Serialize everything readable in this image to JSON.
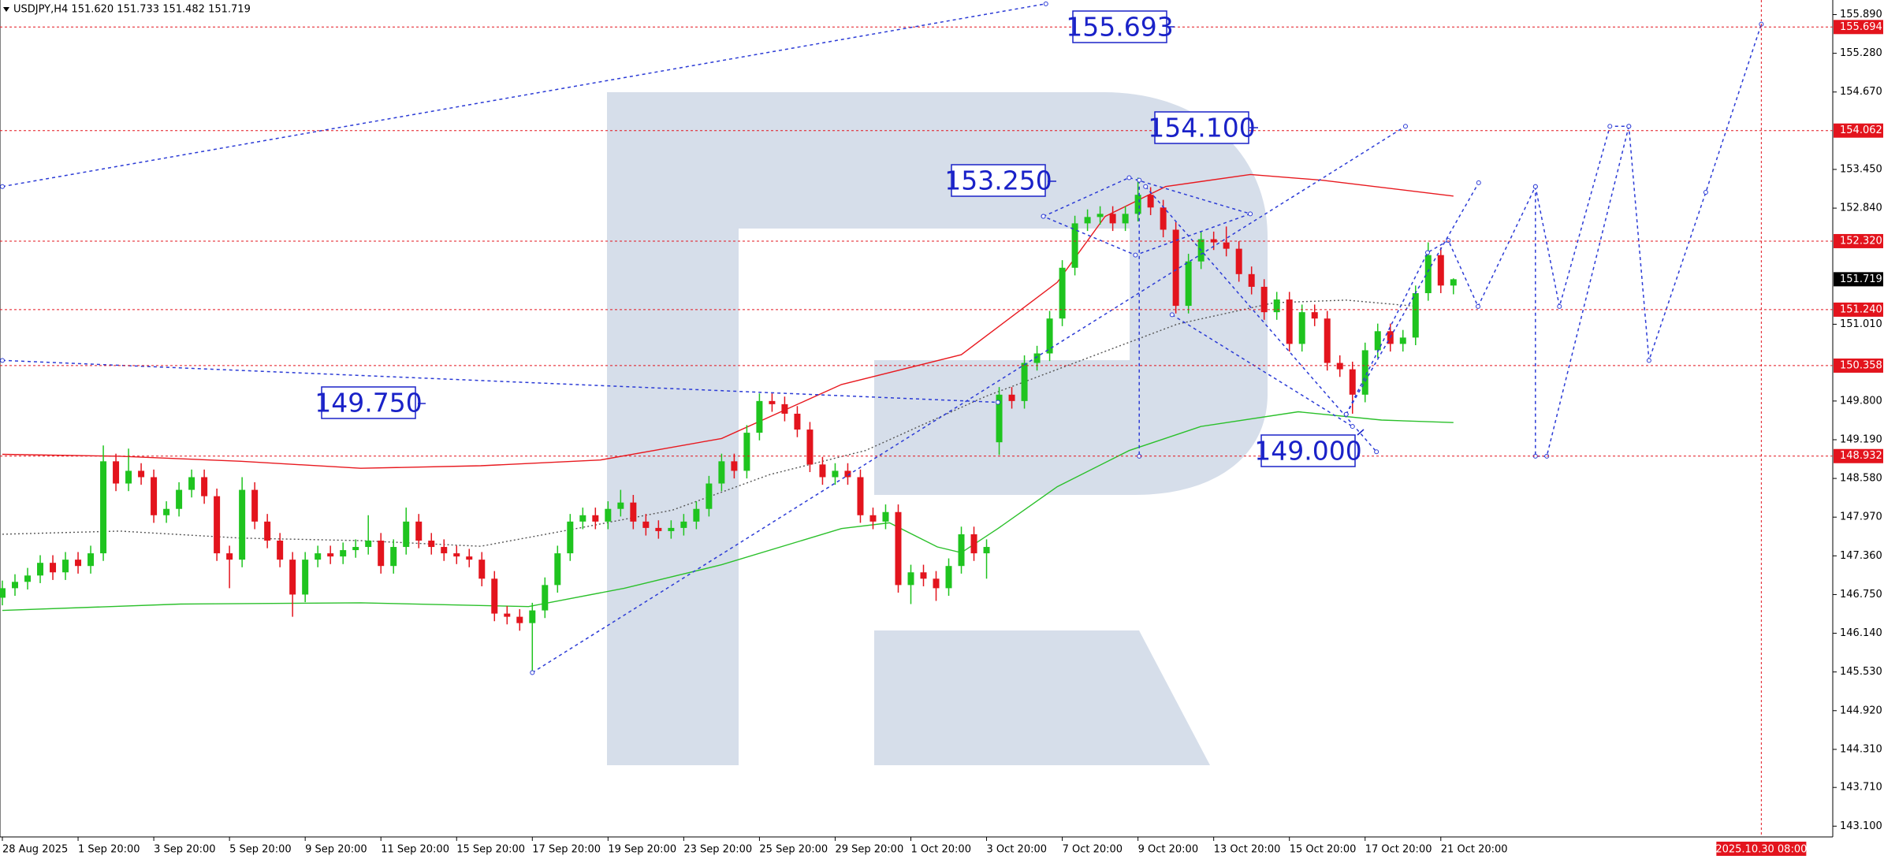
{
  "chart_data": {
    "type": "candlestick",
    "title": "USDJPY,H4  151.620 151.733 151.482 151.719",
    "up_color": "#1fc41f",
    "down_color": "#e3141d",
    "xlim": [
      0,
      145
    ],
    "ylim": [
      142.93,
      156.12
    ],
    "ohlc": [
      [
        146.7,
        146.97,
        146.58,
        146.85
      ],
      [
        146.85,
        147.07,
        146.73,
        146.95
      ],
      [
        146.95,
        147.17,
        146.83,
        147.05
      ],
      [
        147.05,
        147.37,
        146.93,
        147.25
      ],
      [
        147.25,
        147.37,
        146.98,
        147.1
      ],
      [
        147.1,
        147.42,
        146.98,
        147.3
      ],
      [
        147.3,
        147.42,
        147.08,
        147.2
      ],
      [
        147.2,
        147.52,
        147.08,
        147.4
      ],
      [
        147.4,
        149.1,
        147.28,
        148.85
      ],
      [
        148.85,
        148.97,
        148.38,
        148.5
      ],
      [
        148.5,
        149.05,
        148.38,
        148.7
      ],
      [
        148.7,
        148.82,
        148.48,
        148.6
      ],
      [
        148.6,
        148.72,
        147.88,
        148.0
      ],
      [
        148.0,
        148.22,
        147.88,
        148.1
      ],
      [
        148.1,
        148.52,
        147.98,
        148.4
      ],
      [
        148.4,
        148.72,
        148.28,
        148.6
      ],
      [
        148.6,
        148.72,
        148.18,
        148.3
      ],
      [
        148.3,
        148.42,
        147.28,
        147.4
      ],
      [
        147.4,
        147.52,
        146.85,
        147.3
      ],
      [
        147.3,
        148.6,
        147.18,
        148.4
      ],
      [
        148.4,
        148.52,
        147.78,
        147.9
      ],
      [
        147.9,
        148.02,
        147.48,
        147.6
      ],
      [
        147.6,
        147.72,
        147.18,
        147.3
      ],
      [
        147.3,
        147.42,
        146.4,
        146.75
      ],
      [
        146.75,
        147.42,
        146.63,
        147.3
      ],
      [
        147.3,
        147.52,
        147.18,
        147.4
      ],
      [
        147.4,
        147.52,
        147.23,
        147.35
      ],
      [
        147.35,
        147.57,
        147.23,
        147.45
      ],
      [
        147.45,
        147.62,
        147.33,
        147.5
      ],
      [
        147.5,
        148.0,
        147.38,
        147.6
      ],
      [
        147.6,
        147.72,
        147.08,
        147.2
      ],
      [
        147.2,
        147.62,
        147.08,
        147.5
      ],
      [
        147.5,
        148.12,
        147.38,
        147.9
      ],
      [
        147.9,
        148.02,
        147.48,
        147.6
      ],
      [
        147.6,
        147.72,
        147.38,
        147.5
      ],
      [
        147.5,
        147.62,
        147.28,
        147.4
      ],
      [
        147.4,
        147.52,
        147.23,
        147.35
      ],
      [
        147.35,
        147.47,
        147.18,
        147.3
      ],
      [
        147.3,
        147.42,
        146.88,
        147.0
      ],
      [
        147.0,
        147.12,
        146.33,
        146.45
      ],
      [
        146.45,
        146.57,
        146.28,
        146.4
      ],
      [
        146.4,
        146.52,
        146.18,
        146.3
      ],
      [
        146.3,
        146.62,
        145.52,
        146.5
      ],
      [
        146.5,
        147.02,
        146.38,
        146.9
      ],
      [
        146.9,
        147.52,
        146.78,
        147.4
      ],
      [
        147.4,
        148.02,
        147.28,
        147.9
      ],
      [
        147.9,
        148.12,
        147.78,
        148.0
      ],
      [
        148.0,
        148.12,
        147.78,
        147.9
      ],
      [
        147.9,
        148.22,
        147.78,
        148.1
      ],
      [
        148.1,
        148.4,
        147.98,
        148.2
      ],
      [
        148.2,
        148.32,
        147.78,
        147.9
      ],
      [
        147.9,
        148.02,
        147.68,
        147.8
      ],
      [
        147.8,
        147.92,
        147.63,
        147.75
      ],
      [
        147.75,
        147.92,
        147.63,
        147.8
      ],
      [
        147.8,
        148.02,
        147.68,
        147.9
      ],
      [
        147.9,
        148.22,
        147.78,
        148.1
      ],
      [
        148.1,
        148.62,
        147.98,
        148.5
      ],
      [
        148.5,
        148.97,
        148.38,
        148.85
      ],
      [
        148.85,
        148.97,
        148.58,
        148.7
      ],
      [
        148.7,
        149.42,
        148.58,
        149.3
      ],
      [
        149.3,
        149.92,
        149.18,
        149.8
      ],
      [
        149.8,
        149.92,
        149.63,
        149.75
      ],
      [
        149.75,
        149.87,
        149.48,
        149.6
      ],
      [
        149.6,
        149.72,
        149.23,
        149.35
      ],
      [
        149.35,
        149.47,
        148.68,
        148.8
      ],
      [
        148.8,
        148.92,
        148.48,
        148.6
      ],
      [
        148.6,
        148.82,
        148.48,
        148.7
      ],
      [
        148.7,
        148.82,
        148.48,
        148.6
      ],
      [
        148.6,
        148.72,
        147.88,
        148.0
      ],
      [
        148.0,
        148.12,
        147.78,
        147.9
      ],
      [
        147.9,
        148.17,
        147.78,
        148.05
      ],
      [
        148.05,
        148.17,
        146.78,
        146.9
      ],
      [
        146.9,
        147.22,
        146.6,
        147.1
      ],
      [
        147.1,
        147.22,
        146.88,
        147.0
      ],
      [
        147.0,
        147.12,
        146.65,
        146.85
      ],
      [
        146.85,
        147.32,
        146.73,
        147.2
      ],
      [
        147.2,
        147.82,
        147.08,
        147.7
      ],
      [
        147.7,
        147.82,
        147.28,
        147.4
      ],
      [
        147.4,
        147.62,
        147.0,
        147.5
      ],
      [
        149.15,
        150.02,
        148.95,
        149.9
      ],
      [
        149.9,
        150.02,
        149.68,
        149.8
      ],
      [
        149.8,
        150.52,
        149.68,
        150.4
      ],
      [
        150.4,
        150.67,
        150.28,
        150.55
      ],
      [
        150.55,
        151.22,
        150.43,
        151.1
      ],
      [
        151.1,
        152.02,
        150.98,
        151.9
      ],
      [
        151.9,
        152.72,
        151.78,
        152.6
      ],
      [
        152.6,
        152.82,
        152.48,
        152.7
      ],
      [
        152.7,
        152.87,
        152.58,
        152.75
      ],
      [
        152.75,
        152.87,
        152.48,
        152.6
      ],
      [
        152.6,
        152.87,
        152.48,
        152.75
      ],
      [
        152.75,
        153.32,
        152.63,
        153.05
      ],
      [
        153.05,
        153.17,
        152.73,
        152.85
      ],
      [
        152.85,
        152.97,
        152.38,
        152.5
      ],
      [
        152.5,
        152.62,
        151.18,
        151.3
      ],
      [
        151.3,
        152.12,
        151.18,
        152.0
      ],
      [
        152.0,
        152.47,
        151.88,
        152.35
      ],
      [
        152.35,
        152.47,
        152.18,
        152.3
      ],
      [
        152.3,
        152.55,
        152.08,
        152.2
      ],
      [
        152.2,
        152.32,
        151.68,
        151.8
      ],
      [
        151.8,
        151.92,
        151.48,
        151.6
      ],
      [
        151.6,
        151.72,
        151.08,
        151.2
      ],
      [
        151.2,
        151.52,
        151.08,
        151.4
      ],
      [
        151.4,
        151.52,
        150.58,
        150.7
      ],
      [
        150.7,
        151.32,
        150.58,
        151.2
      ],
      [
        151.2,
        151.32,
        150.98,
        151.1
      ],
      [
        151.1,
        151.22,
        150.28,
        150.4
      ],
      [
        150.4,
        150.52,
        150.18,
        150.3
      ],
      [
        150.3,
        150.42,
        149.6,
        149.9
      ],
      [
        149.9,
        150.72,
        149.78,
        150.6
      ],
      [
        150.6,
        151.02,
        150.48,
        150.9
      ],
      [
        150.9,
        151.02,
        150.58,
        150.7
      ],
      [
        150.7,
        150.92,
        150.58,
        150.8
      ],
      [
        150.8,
        151.62,
        150.68,
        151.5
      ],
      [
        151.5,
        152.3,
        151.38,
        152.1
      ],
      [
        152.1,
        152.22,
        151.5,
        151.62
      ],
      [
        151.62,
        151.733,
        151.482,
        151.719
      ]
    ],
    "moving_averages": [
      {
        "color": "#e8191f",
        "style": "solid",
        "x": [
          0,
          9.3,
          18.9,
          28.4,
          37.9,
          47.4,
          57,
          66.5,
          76,
          83.6,
          87.4,
          92.2,
          98.9,
          104.6,
          115
        ],
        "values": [
          148.96,
          148.93,
          148.85,
          148.74,
          148.78,
          148.87,
          149.21,
          150.06,
          150.53,
          151.67,
          152.71,
          153.18,
          153.37,
          153.28,
          153.03
        ]
      },
      {
        "color": "#2bc02b",
        "style": "solid",
        "x": [
          0,
          14.1,
          28.4,
          41.7,
          49.3,
          57,
          66.5,
          70.3,
          74.1,
          76,
          78.9,
          83.6,
          89.3,
          95,
          102.7,
          109.3,
          115
        ],
        "values": [
          146.5,
          146.6,
          146.62,
          146.56,
          146.85,
          147.22,
          147.79,
          147.88,
          147.5,
          147.41,
          147.79,
          148.45,
          149.02,
          149.4,
          149.63,
          149.5,
          149.46
        ]
      },
      {
        "color": "#555555",
        "style": "dotted",
        "x": [
          0,
          9.3,
          18.9,
          28.4,
          37.9,
          45.5,
          53.1,
          60.8,
          68.4,
          77.9,
          85.5,
          93.1,
          100.8,
          106.5,
          112.2
        ],
        "values": [
          147.7,
          147.75,
          147.64,
          147.6,
          147.51,
          147.79,
          148.08,
          148.64,
          149.02,
          149.87,
          150.44,
          151.01,
          151.35,
          151.39,
          151.29
        ]
      }
    ],
    "drawings_color": "#2b3bd6",
    "drawings": [
      {
        "x": [
          0,
          82.7
        ],
        "values": [
          153.18,
          156.06
        ]
      },
      {
        "x": [
          0,
          78.9
        ],
        "values": [
          150.44,
          149.78
        ]
      },
      {
        "x": [
          42,
          111.2
        ],
        "values": [
          145.52,
          154.13
        ]
      },
      {
        "x": [
          82.5,
          89.3,
          98.9,
          89.8,
          82.5
        ],
        "values": [
          152.71,
          153.32,
          152.75,
          152.1,
          152.71
        ]
      },
      {
        "x": [
          90.6,
          108.9
        ],
        "values": [
          153.18,
          149.0
        ]
      },
      {
        "x": [
          92.7,
          107
        ],
        "values": [
          151.16,
          149.4
        ]
      },
      {
        "x": [
          90.1,
          90.1
        ],
        "values": [
          153.28,
          148.93
        ]
      },
      {
        "x": [
          106.5,
          112.95,
          114.6,
          116.95,
          121.5,
          123.4,
          127.4,
          128.9,
          130.5,
          135.0,
          139.4
        ],
        "values": [
          149.59,
          152.14,
          152.33,
          151.29,
          153.18,
          151.29,
          154.13,
          154.13,
          150.44,
          153.09,
          155.74
        ]
      },
      {
        "x": [
          121.5,
          121.5,
          122.4,
          128.9
        ],
        "values": [
          153.18,
          148.93,
          148.93,
          154.13
        ]
      },
      {
        "x": [
          106.5,
          117
        ],
        "values": [
          149.59,
          153.24
        ]
      }
    ],
    "annotations": [
      "155.693",
      "154.100",
      "153.250",
      "149.750",
      "149.000"
    ],
    "levels": [
      155.694,
      154.062,
      {
        "value": 152.32,
        "label": "152.320"
      },
      {
        "value": 151.24,
        "label": "151.240"
      },
      150.358,
      148.932
    ],
    "current_price": 151.719,
    "time_marker": {
      "value": 139.4,
      "label": "2025.10.30 08:00"
    },
    "yticks": [
      {
        "value": 155.89,
        "label": "155.890"
      },
      {
        "value": 155.28,
        "label": "155.280"
      },
      {
        "value": 154.67,
        "label": "154.670"
      },
      {
        "value": 153.45,
        "label": "153.450"
      },
      {
        "value": 152.84,
        "label": "152.840"
      },
      {
        "value": 151.01,
        "label": "151.010"
      },
      {
        "value": 149.8,
        "label": "149.800"
      },
      {
        "value": 149.19,
        "label": "149.190"
      },
      {
        "value": 148.58,
        "label": "148.580"
      },
      {
        "value": 147.97,
        "label": "147.970"
      },
      {
        "value": 147.36,
        "label": "147.360"
      },
      {
        "value": 146.75,
        "label": "146.750"
      },
      {
        "value": 146.14,
        "label": "146.140"
      },
      {
        "value": 145.53,
        "label": "145.530"
      },
      {
        "value": 144.92,
        "label": "144.920"
      },
      {
        "value": 144.31,
        "label": "144.310"
      },
      {
        "value": 143.71,
        "label": "143.710"
      },
      {
        "value": 143.1,
        "label": "143.100"
      }
    ],
    "xticks": [
      {
        "value": 0,
        "label": "28 Aug 2025"
      },
      {
        "value": 6,
        "label": "1 Sep 20:00"
      },
      {
        "value": 12,
        "label": "3 Sep 20:00"
      },
      {
        "value": 18,
        "label": "5 Sep 20:00"
      },
      {
        "value": 24,
        "label": "9 Sep 20:00"
      },
      {
        "value": 30,
        "label": "11 Sep 20:00"
      },
      {
        "value": 36,
        "label": "15 Sep 20:00"
      },
      {
        "value": 42,
        "label": "17 Sep 20:00"
      },
      {
        "value": 48,
        "label": "19 Sep 20:00"
      },
      {
        "value": 54,
        "label": "23 Sep 20:00"
      },
      {
        "value": 60,
        "label": "25 Sep 20:00"
      },
      {
        "value": 66,
        "label": "29 Sep 20:00"
      },
      {
        "value": 72,
        "label": "1 Oct 20:00"
      },
      {
        "value": 78,
        "label": "3 Oct 20:00"
      },
      {
        "value": 84,
        "label": "7 Oct 20:00"
      },
      {
        "value": 90,
        "label": "9 Oct 20:00"
      },
      {
        "value": 96,
        "label": "13 Oct 20:00"
      },
      {
        "value": 102,
        "label": "15 Oct 20:00"
      },
      {
        "value": 108,
        "label": "17 Oct 20:00"
      },
      {
        "value": 114,
        "label": "21 Oct 20:00"
      }
    ]
  }
}
